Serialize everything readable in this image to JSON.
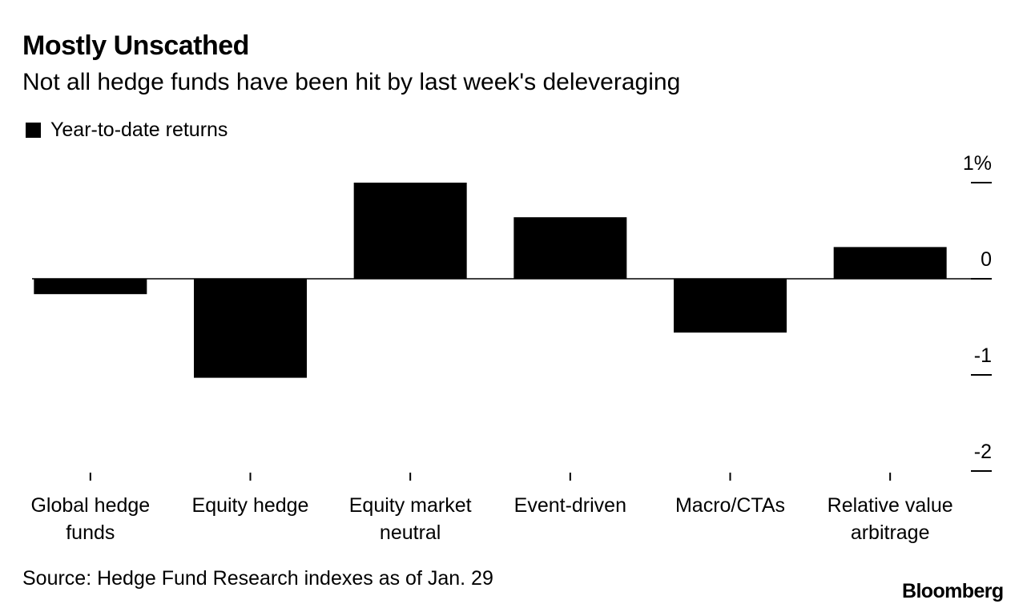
{
  "header": {
    "title": "Mostly Unscathed",
    "subtitle": "Not all hedge funds have been hit by last week's deleveraging"
  },
  "legend": {
    "label": "Year-to-date returns"
  },
  "footer": {
    "source": "Source: Hedge Fund Research indexes as of Jan. 29",
    "brand": "Bloomberg"
  },
  "chart_data": {
    "type": "bar",
    "title": "Mostly Unscathed",
    "subtitle": "Not all hedge funds have been hit by last week's deleveraging",
    "categories": [
      [
        "Global hedge",
        "funds"
      ],
      [
        "Equity hedge"
      ],
      [
        "Equity market",
        "neutral"
      ],
      [
        "Event-driven"
      ],
      [
        "Macro/CTAs"
      ],
      [
        "Relative value",
        "arbitrage"
      ]
    ],
    "series": [
      {
        "name": "Year-to-date returns",
        "values": [
          -0.16,
          -1.03,
          1.0,
          0.64,
          -0.56,
          0.33
        ]
      }
    ],
    "ylim": [
      -2,
      1
    ],
    "yticks": [
      {
        "value": 1,
        "label": "1%"
      },
      {
        "value": 0,
        "label": "0"
      },
      {
        "value": -1,
        "label": "-1"
      },
      {
        "value": -2,
        "label": "-2"
      }
    ],
    "xlabel": "",
    "ylabel": "",
    "legend_position": "top-left",
    "colors": {
      "bar": "#000000",
      "axis": "#000000"
    }
  }
}
